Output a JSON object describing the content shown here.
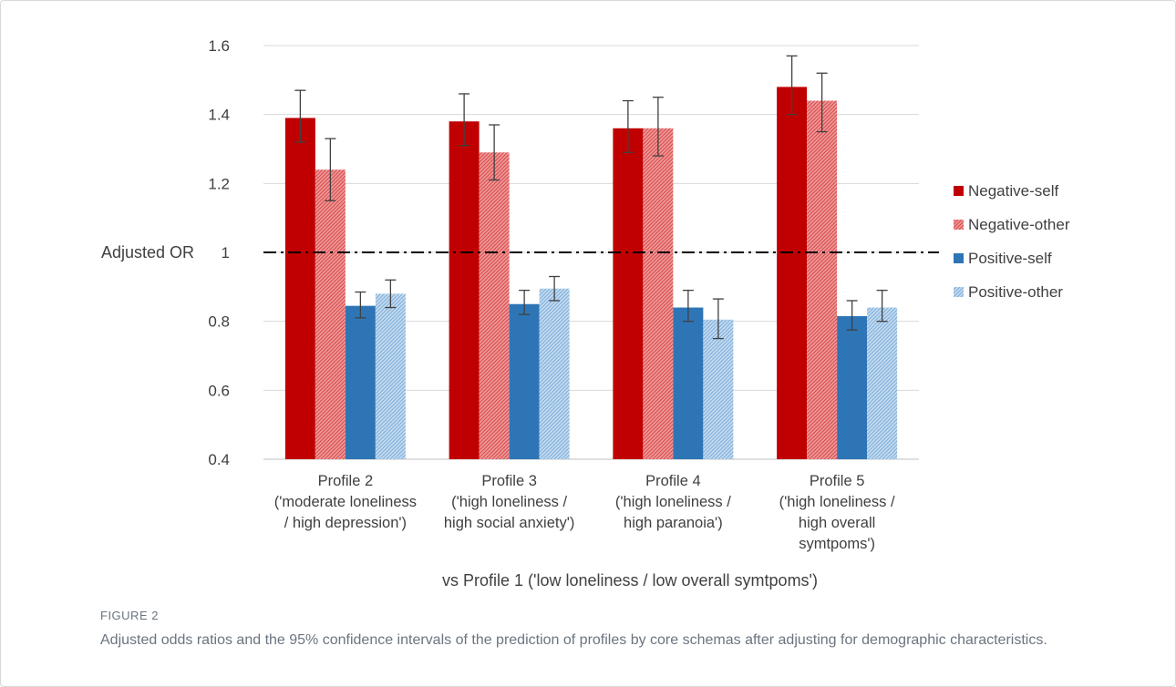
{
  "chart_data": {
    "type": "bar",
    "categories": [
      [
        "Profile 2",
        "('moderate loneliness",
        "/ high depression')"
      ],
      [
        "Profile 3",
        "('high loneliness /",
        "high social anxiety')"
      ],
      [
        "Profile 4",
        "('high loneliness /",
        "high paranoia')"
      ],
      [
        "Profile 5",
        "('high loneliness /",
        "high overall",
        "symtpoms')"
      ]
    ],
    "series": [
      {
        "name": "Negative-self",
        "color": "#c00000",
        "pattern": "solid",
        "values": [
          1.39,
          1.38,
          1.36,
          1.48
        ],
        "ci_low": [
          1.32,
          1.31,
          1.29,
          1.4
        ],
        "ci_high": [
          1.47,
          1.46,
          1.44,
          1.57
        ]
      },
      {
        "name": "Negative-other",
        "color": "#e46c6c",
        "pattern": "hatched",
        "values": [
          1.24,
          1.29,
          1.36,
          1.44
        ],
        "ci_low": [
          1.15,
          1.21,
          1.28,
          1.35
        ],
        "ci_high": [
          1.33,
          1.37,
          1.45,
          1.52
        ]
      },
      {
        "name": "Positive-self",
        "color": "#2e75b6",
        "pattern": "solid",
        "values": [
          0.845,
          0.85,
          0.84,
          0.815
        ],
        "ci_low": [
          0.81,
          0.82,
          0.8,
          0.775
        ],
        "ci_high": [
          0.885,
          0.89,
          0.89,
          0.86
        ]
      },
      {
        "name": "Positive-other",
        "color": "#9dc3e6",
        "pattern": "hatched",
        "values": [
          0.88,
          0.895,
          0.805,
          0.84
        ],
        "ci_low": [
          0.84,
          0.86,
          0.75,
          0.8
        ],
        "ci_high": [
          0.92,
          0.93,
          0.865,
          0.89
        ]
      }
    ],
    "yticks": [
      "0.4",
      "0.6",
      "0.8",
      "1",
      "1.2",
      "1.4",
      "1.6"
    ],
    "ylim": [
      0.4,
      1.6
    ],
    "reference_line": 1,
    "ylabel": "Adjusted OR",
    "xlabel": "vs Profile 1 ('low loneliness / low overall symtpoms')",
    "grid": true,
    "legend_position": "right"
  },
  "figure": {
    "label": "FIGURE 2",
    "caption": "Adjusted odds ratios and the 95% confidence intervals of the prediction of profiles by core schemas after adjusting for demographic characteristics."
  }
}
